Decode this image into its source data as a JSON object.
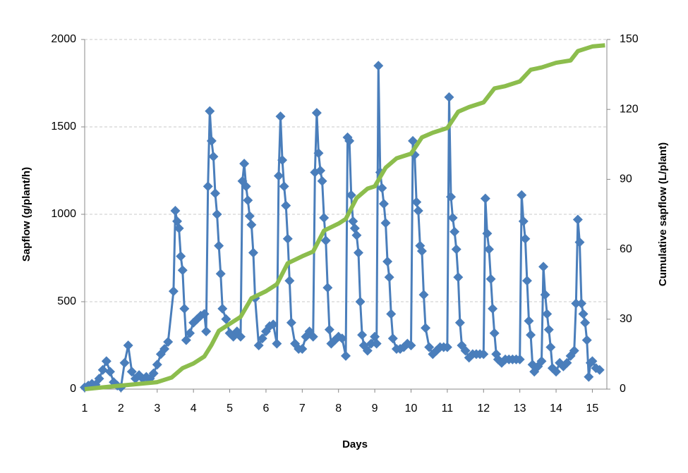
{
  "chart_data": {
    "type": "line",
    "xlabel": "Days",
    "ylabel": "Sapflow (g/plant/h)",
    "y2label": "Cumulative sapflow (L/plant)",
    "xlim": [
      1,
      15.4
    ],
    "xticks": [
      1,
      2,
      3,
      4,
      5,
      6,
      7,
      8,
      9,
      10,
      11,
      12,
      13,
      14,
      15
    ],
    "ylim": [
      0,
      2000
    ],
    "yticks": [
      0,
      500,
      1000,
      1500,
      2000
    ],
    "y2lim": [
      0,
      150
    ],
    "y2ticks": [
      0,
      30,
      60,
      90,
      120,
      150
    ],
    "grid": true,
    "series": [
      {
        "color": "#4a7ebb",
        "marker": "diamond",
        "x": [
          1.0,
          1.1,
          1.2,
          1.3,
          1.4,
          1.5,
          1.6,
          1.7,
          1.8,
          1.9,
          2.0,
          2.1,
          2.2,
          2.3,
          2.4,
          2.5,
          2.6,
          2.7,
          2.8,
          2.9,
          3.0,
          3.1,
          3.2,
          3.3,
          3.45,
          3.5,
          3.55,
          3.6,
          3.65,
          3.7,
          3.75,
          3.8,
          3.9,
          4.0,
          4.1,
          4.2,
          4.3,
          4.35,
          4.4,
          4.45,
          4.5,
          4.55,
          4.6,
          4.65,
          4.7,
          4.75,
          4.8,
          4.9,
          5.0,
          5.1,
          5.2,
          5.3,
          5.35,
          5.4,
          5.45,
          5.5,
          5.55,
          5.6,
          5.65,
          5.7,
          5.8,
          5.9,
          6.0,
          6.1,
          6.2,
          6.3,
          6.35,
          6.4,
          6.45,
          6.5,
          6.55,
          6.6,
          6.65,
          6.7,
          6.8,
          6.9,
          7.0,
          7.1,
          7.2,
          7.3,
          7.35,
          7.4,
          7.45,
          7.5,
          7.55,
          7.6,
          7.65,
          7.7,
          7.75,
          7.8,
          7.9,
          8.0,
          8.1,
          8.2,
          8.25,
          8.3,
          8.35,
          8.4,
          8.45,
          8.5,
          8.55,
          8.6,
          8.65,
          8.7,
          8.8,
          8.9,
          9.0,
          9.05,
          9.1,
          9.15,
          9.2,
          9.25,
          9.3,
          9.35,
          9.4,
          9.45,
          9.5,
          9.6,
          9.7,
          9.8,
          9.9,
          10.0,
          10.05,
          10.1,
          10.15,
          10.2,
          10.25,
          10.3,
          10.35,
          10.4,
          10.5,
          10.6,
          10.7,
          10.8,
          10.9,
          11.0,
          11.05,
          11.1,
          11.15,
          11.2,
          11.25,
          11.3,
          11.35,
          11.4,
          11.5,
          11.6,
          11.7,
          11.8,
          11.9,
          12.0,
          12.05,
          12.1,
          12.15,
          12.2,
          12.25,
          12.3,
          12.35,
          12.4,
          12.5,
          12.6,
          12.7,
          12.8,
          12.9,
          13.0,
          13.05,
          13.1,
          13.15,
          13.2,
          13.25,
          13.3,
          13.35,
          13.4,
          13.5,
          13.6,
          13.65,
          13.7,
          13.75,
          13.8,
          13.85,
          13.9,
          14.0,
          14.1,
          14.2,
          14.3,
          14.4,
          14.5,
          14.55,
          14.6,
          14.65,
          14.7,
          14.75,
          14.8,
          14.85,
          14.9,
          14.95,
          15.0,
          15.1,
          15.2
        ],
        "values": [
          10,
          20,
          30,
          25,
          60,
          110,
          160,
          100,
          40,
          20,
          10,
          150,
          250,
          100,
          60,
          80,
          60,
          70,
          60,
          90,
          140,
          200,
          230,
          270,
          560,
          1020,
          960,
          920,
          760,
          680,
          460,
          280,
          320,
          380,
          400,
          420,
          430,
          330,
          1160,
          1590,
          1420,
          1330,
          1120,
          1000,
          820,
          660,
          460,
          400,
          320,
          300,
          330,
          300,
          1190,
          1290,
          1160,
          1080,
          990,
          940,
          780,
          520,
          250,
          290,
          330,
          360,
          370,
          260,
          1220,
          1560,
          1310,
          1160,
          1050,
          860,
          620,
          380,
          260,
          230,
          230,
          300,
          330,
          300,
          1240,
          1580,
          1350,
          1250,
          1190,
          980,
          850,
          580,
          340,
          260,
          280,
          300,
          290,
          190,
          1440,
          1420,
          1110,
          960,
          920,
          880,
          780,
          500,
          310,
          250,
          220,
          260,
          300,
          260,
          1850,
          1240,
          1150,
          1060,
          950,
          730,
          640,
          430,
          290,
          230,
          230,
          240,
          260,
          250,
          1420,
          1340,
          1070,
          1020,
          820,
          790,
          540,
          350,
          240,
          200,
          220,
          240,
          240,
          240,
          1670,
          1100,
          980,
          900,
          800,
          640,
          380,
          250,
          220,
          180,
          200,
          200,
          200,
          200,
          1090,
          890,
          800,
          630,
          460,
          320,
          200,
          170,
          150,
          170,
          170,
          170,
          170,
          170,
          1110,
          960,
          860,
          620,
          390,
          310,
          140,
          100,
          130,
          160,
          700,
          540,
          430,
          340,
          240,
          120,
          100,
          150,
          130,
          150,
          190,
          220,
          490,
          970,
          840,
          490,
          430,
          380,
          280,
          70,
          150,
          160,
          120,
          110
        ]
      },
      {
        "color": "#8cbd4d",
        "axis": "y2",
        "x": [
          1,
          2,
          3,
          3.4,
          3.7,
          4.0,
          4.3,
          4.5,
          4.7,
          5.0,
          5.3,
          5.6,
          6.0,
          6.3,
          6.6,
          7.0,
          7.3,
          7.6,
          8.0,
          8.2,
          8.5,
          8.8,
          9.0,
          9.3,
          9.6,
          10.0,
          10.3,
          10.6,
          11.0,
          11.3,
          11.6,
          12.0,
          12.3,
          12.6,
          13.0,
          13.3,
          13.6,
          14.0,
          14.4,
          14.6,
          15.0,
          15.35
        ],
        "values": [
          0,
          1.5,
          3,
          5,
          9,
          11,
          14,
          19,
          25,
          28,
          31,
          39,
          42,
          45,
          54,
          57,
          59,
          68,
          71,
          73,
          82,
          86,
          87,
          95,
          99,
          101,
          108,
          110,
          112,
          119,
          121,
          123,
          129,
          130,
          132,
          137,
          138,
          140,
          141,
          145,
          147,
          147.5
        ]
      }
    ]
  }
}
